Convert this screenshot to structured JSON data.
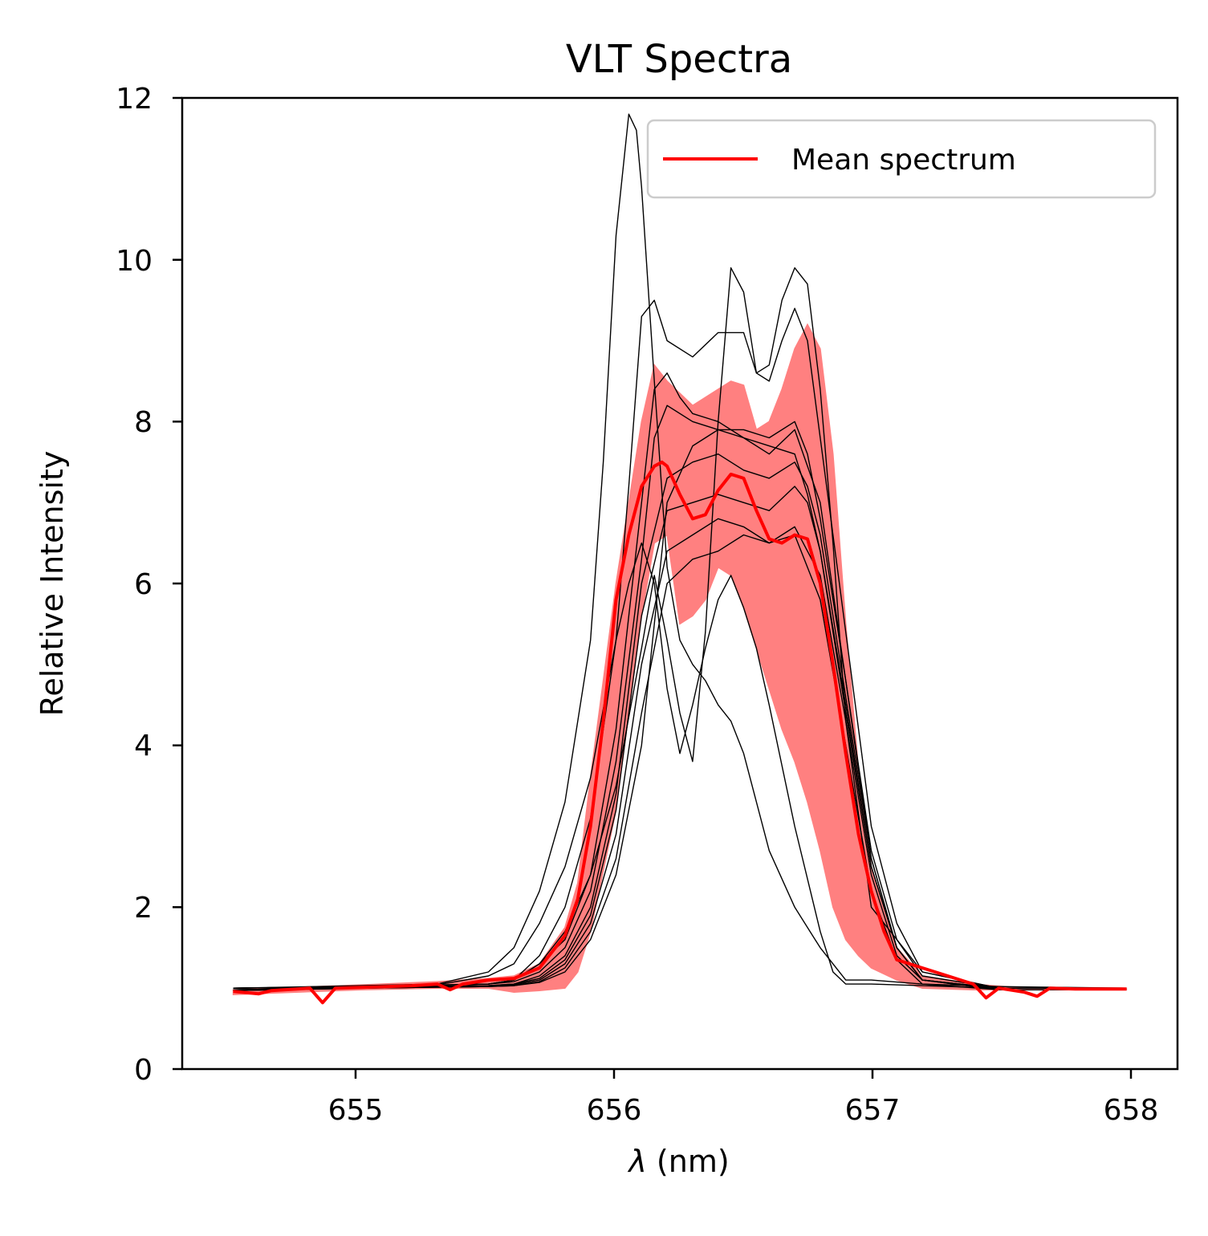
{
  "chart_data": {
    "type": "line",
    "title": "VLT Spectra",
    "xlabel_symbol": "λ",
    "xlabel_unit": " (nm)",
    "ylabel": "Relative Intensity",
    "xlim": [
      654.3,
      658.2
    ],
    "ylim": [
      0,
      12
    ],
    "xticks": [
      "655",
      "656",
      "657",
      "658"
    ],
    "yticks": [
      "0",
      "2",
      "4",
      "6",
      "8",
      "10",
      "12"
    ],
    "legend": {
      "label": "Mean spectrum",
      "placement": "upper right"
    },
    "colors": {
      "mean": "#ff0000",
      "band": "#ff8080",
      "individual": "#000000"
    },
    "band": {
      "x": [
        654.5,
        655.0,
        655.3,
        655.5,
        655.6,
        655.7,
        655.8,
        655.85,
        655.9,
        656.0,
        656.1,
        656.15,
        656.2,
        656.25,
        656.3,
        656.35,
        656.4,
        656.45,
        656.5,
        656.55,
        656.6,
        656.65,
        656.7,
        656.75,
        656.8,
        656.85,
        656.9,
        656.95,
        657.0,
        657.1,
        657.2,
        657.4,
        657.6,
        658.0
      ],
      "upper": [
        0.98,
        1.04,
        1.08,
        1.12,
        1.15,
        1.3,
        1.75,
        2.3,
        3.6,
        6.0,
        8.0,
        8.7,
        8.5,
        8.35,
        8.2,
        8.3,
        8.4,
        8.5,
        8.45,
        7.9,
        8.0,
        8.4,
        8.9,
        9.2,
        8.9,
        7.6,
        5.5,
        3.7,
        2.5,
        1.5,
        1.15,
        1.05,
        1.0,
        1.0
      ],
      "lower": [
        0.92,
        0.98,
        1.0,
        1.0,
        0.95,
        0.97,
        1.0,
        1.2,
        1.7,
        3.2,
        5.6,
        6.5,
        6.6,
        5.5,
        5.6,
        5.8,
        6.2,
        6.1,
        5.7,
        5.2,
        4.7,
        4.2,
        3.8,
        3.3,
        2.7,
        2.0,
        1.6,
        1.4,
        1.25,
        1.1,
        1.0,
        0.98,
        0.98,
        0.98
      ]
    },
    "series": [
      {
        "role": "mean",
        "x": [
          654.5,
          654.6,
          654.65,
          654.7,
          654.8,
          654.85,
          654.9,
          655.0,
          655.1,
          655.2,
          655.3,
          655.35,
          655.4,
          655.5,
          655.6,
          655.7,
          655.8,
          655.85,
          655.9,
          655.95,
          656.0,
          656.05,
          656.1,
          656.15,
          656.18,
          656.2,
          656.25,
          656.3,
          656.35,
          656.4,
          656.45,
          656.5,
          656.55,
          656.6,
          656.65,
          656.7,
          656.75,
          656.8,
          656.85,
          656.9,
          656.95,
          657.0,
          657.05,
          657.1,
          657.15,
          657.2,
          657.3,
          657.4,
          657.45,
          657.5,
          657.6,
          657.65,
          657.7,
          657.8,
          658.0
        ],
        "y": [
          0.96,
          0.93,
          0.97,
          0.98,
          1.0,
          0.82,
          1.0,
          1.01,
          1.02,
          1.03,
          1.05,
          0.98,
          1.05,
          1.1,
          1.12,
          1.25,
          1.65,
          2.1,
          3.0,
          4.3,
          5.8,
          6.6,
          7.2,
          7.45,
          7.5,
          7.45,
          7.1,
          6.8,
          6.85,
          7.15,
          7.35,
          7.3,
          6.9,
          6.55,
          6.5,
          6.6,
          6.55,
          6.0,
          5.0,
          3.9,
          2.9,
          2.2,
          1.7,
          1.35,
          1.3,
          1.25,
          1.15,
          1.05,
          0.88,
          1.0,
          0.95,
          0.9,
          1.0,
          0.99,
          0.99
        ]
      },
      {
        "role": "individual",
        "x": [
          654.5,
          655.0,
          655.3,
          655.5,
          655.6,
          655.7,
          655.8,
          655.9,
          655.95,
          656.0,
          656.05,
          656.08,
          656.1,
          656.15,
          656.2,
          656.25,
          656.3,
          656.35,
          656.4,
          656.45,
          656.5,
          656.55,
          656.6,
          656.7,
          656.8,
          656.9,
          657.0,
          657.2,
          657.5,
          658.0
        ],
        "y": [
          1.0,
          1.03,
          1.05,
          1.2,
          1.5,
          2.2,
          3.3,
          5.3,
          7.5,
          10.3,
          11.8,
          11.6,
          10.9,
          8.5,
          6.2,
          5.3,
          5.0,
          4.8,
          4.5,
          4.3,
          3.9,
          3.3,
          2.7,
          2.0,
          1.5,
          1.1,
          1.1,
          1.05,
          1.02,
          1.0
        ]
      },
      {
        "role": "individual",
        "x": [
          654.5,
          655.0,
          655.3,
          655.5,
          655.6,
          655.7,
          655.8,
          655.9,
          656.0,
          656.05,
          656.1,
          656.15,
          656.2,
          656.25,
          656.3,
          656.35,
          656.4,
          656.45,
          656.5,
          656.55,
          656.6,
          656.7,
          656.8,
          656.85,
          656.9,
          657.0,
          657.2,
          657.5,
          658.0
        ],
        "y": [
          1.0,
          1.02,
          1.04,
          1.15,
          1.3,
          1.8,
          2.5,
          3.6,
          5.3,
          6.0,
          6.5,
          6.0,
          4.7,
          3.9,
          4.5,
          5.2,
          5.8,
          6.1,
          5.7,
          5.2,
          4.5,
          3.0,
          1.7,
          1.2,
          1.05,
          1.05,
          1.03,
          1.0,
          1.0
        ]
      },
      {
        "role": "individual",
        "x": [
          654.5,
          655.0,
          655.5,
          655.6,
          655.7,
          655.8,
          655.9,
          656.0,
          656.1,
          656.15,
          656.2,
          656.25,
          656.3,
          656.35,
          656.4,
          656.45,
          656.5,
          656.55,
          656.6,
          656.65,
          656.7,
          656.75,
          656.8,
          656.85,
          656.9,
          657.0,
          657.2,
          657.5,
          658.0
        ],
        "y": [
          1.0,
          1.02,
          1.05,
          1.1,
          1.3,
          1.7,
          2.4,
          3.5,
          5.2,
          6.1,
          5.3,
          4.4,
          3.8,
          5.4,
          8.0,
          9.9,
          9.6,
          8.6,
          8.7,
          9.5,
          9.9,
          9.7,
          8.4,
          6.5,
          4.3,
          2.0,
          1.2,
          1.0,
          1.0
        ]
      },
      {
        "role": "individual",
        "x": [
          654.5,
          655.0,
          655.5,
          655.6,
          655.7,
          655.8,
          655.9,
          656.0,
          656.05,
          656.1,
          656.15,
          656.2,
          656.3,
          656.4,
          656.5,
          656.55,
          656.6,
          656.65,
          656.7,
          656.75,
          656.8,
          656.9,
          657.0,
          657.1,
          657.2,
          657.5,
          658.0
        ],
        "y": [
          1.0,
          1.02,
          1.05,
          1.1,
          1.4,
          2.0,
          3.1,
          5.3,
          7.2,
          9.3,
          9.5,
          9.0,
          8.8,
          9.1,
          9.1,
          8.6,
          8.5,
          9.0,
          9.4,
          9.0,
          7.8,
          5.4,
          3.0,
          1.8,
          1.2,
          1.0,
          1.0
        ]
      },
      {
        "role": "individual",
        "x": [
          654.5,
          655.0,
          655.5,
          655.6,
          655.7,
          655.8,
          655.9,
          656.0,
          656.1,
          656.15,
          656.2,
          656.25,
          656.3,
          656.4,
          656.5,
          656.6,
          656.7,
          656.75,
          656.8,
          656.9,
          657.0,
          657.1,
          657.2,
          657.5,
          658.0
        ],
        "y": [
          1.0,
          1.02,
          1.05,
          1.1,
          1.3,
          1.6,
          2.4,
          4.2,
          7.0,
          8.4,
          8.6,
          8.3,
          8.1,
          8.0,
          7.8,
          7.7,
          7.6,
          7.1,
          6.4,
          4.5,
          2.5,
          1.5,
          1.1,
          1.0,
          1.0
        ]
      },
      {
        "role": "individual",
        "x": [
          654.5,
          655.0,
          655.5,
          655.6,
          655.7,
          655.8,
          655.9,
          656.0,
          656.1,
          656.15,
          656.2,
          656.3,
          656.4,
          656.5,
          656.6,
          656.7,
          656.75,
          656.8,
          656.9,
          657.0,
          657.1,
          657.2,
          657.5,
          658.0
        ],
        "y": [
          1.0,
          1.02,
          1.05,
          1.08,
          1.2,
          1.5,
          2.2,
          3.8,
          6.3,
          7.8,
          8.2,
          8.0,
          7.9,
          7.9,
          7.8,
          8.0,
          7.6,
          6.8,
          4.8,
          2.7,
          1.6,
          1.15,
          1.0,
          1.0
        ]
      },
      {
        "role": "individual",
        "x": [
          654.5,
          655.0,
          655.5,
          655.6,
          655.7,
          655.8,
          655.9,
          656.0,
          656.1,
          656.2,
          656.3,
          656.4,
          656.5,
          656.6,
          656.7,
          656.75,
          656.8,
          656.9,
          657.0,
          657.1,
          657.2,
          657.5,
          658.0
        ],
        "y": [
          0.98,
          1.01,
          1.03,
          1.05,
          1.15,
          1.4,
          2.0,
          3.4,
          6.0,
          7.3,
          7.5,
          7.6,
          7.4,
          7.3,
          7.5,
          7.2,
          6.6,
          4.6,
          2.6,
          1.5,
          1.1,
          1.0,
          1.0
        ]
      },
      {
        "role": "individual",
        "x": [
          654.5,
          655.0,
          655.5,
          655.6,
          655.7,
          655.8,
          655.9,
          656.0,
          656.1,
          656.2,
          656.3,
          656.4,
          656.5,
          656.6,
          656.7,
          656.75,
          656.8,
          656.9,
          657.0,
          657.1,
          657.2,
          657.5,
          658.0
        ],
        "y": [
          0.98,
          1.01,
          1.03,
          1.05,
          1.12,
          1.35,
          1.9,
          3.2,
          5.6,
          6.9,
          7.0,
          7.1,
          7.0,
          6.9,
          7.2,
          7.0,
          6.4,
          4.4,
          2.5,
          1.5,
          1.1,
          1.0,
          1.0
        ]
      },
      {
        "role": "individual",
        "x": [
          654.5,
          655.0,
          655.5,
          655.6,
          655.7,
          655.8,
          655.9,
          656.0,
          656.1,
          656.2,
          656.3,
          656.4,
          656.5,
          656.6,
          656.7,
          656.8,
          656.9,
          657.0,
          657.1,
          657.2,
          657.5,
          658.0
        ],
        "y": [
          0.97,
          1.0,
          1.02,
          1.04,
          1.1,
          1.3,
          1.8,
          2.9,
          5.0,
          6.4,
          6.6,
          6.8,
          6.7,
          6.5,
          6.7,
          6.1,
          4.3,
          2.4,
          1.4,
          1.1,
          0.98,
          0.98
        ]
      },
      {
        "role": "individual",
        "x": [
          654.5,
          655.0,
          655.5,
          655.6,
          655.7,
          655.8,
          655.9,
          656.0,
          656.1,
          656.2,
          656.3,
          656.4,
          656.5,
          656.6,
          656.7,
          656.8,
          656.9,
          657.0,
          657.1,
          657.2,
          657.5,
          658.0
        ],
        "y": [
          0.97,
          1.0,
          1.02,
          1.03,
          1.08,
          1.25,
          1.7,
          2.6,
          4.4,
          6.0,
          6.3,
          6.4,
          6.6,
          6.5,
          6.6,
          5.8,
          4.0,
          2.2,
          1.35,
          1.05,
          0.98,
          0.98
        ]
      },
      {
        "role": "individual",
        "x": [
          654.5,
          655.0,
          655.5,
          655.6,
          655.7,
          655.8,
          655.9,
          656.0,
          656.1,
          656.2,
          656.3,
          656.4,
          656.5,
          656.6,
          656.7,
          656.8,
          656.9,
          657.0,
          657.1,
          657.2,
          657.5,
          658.0
        ],
        "y": [
          0.97,
          1.0,
          1.02,
          1.03,
          1.07,
          1.2,
          1.6,
          2.4,
          4.0,
          7.0,
          7.7,
          7.9,
          7.8,
          7.6,
          7.9,
          7.0,
          4.8,
          2.6,
          1.5,
          1.1,
          0.98,
          0.98
        ]
      }
    ]
  }
}
